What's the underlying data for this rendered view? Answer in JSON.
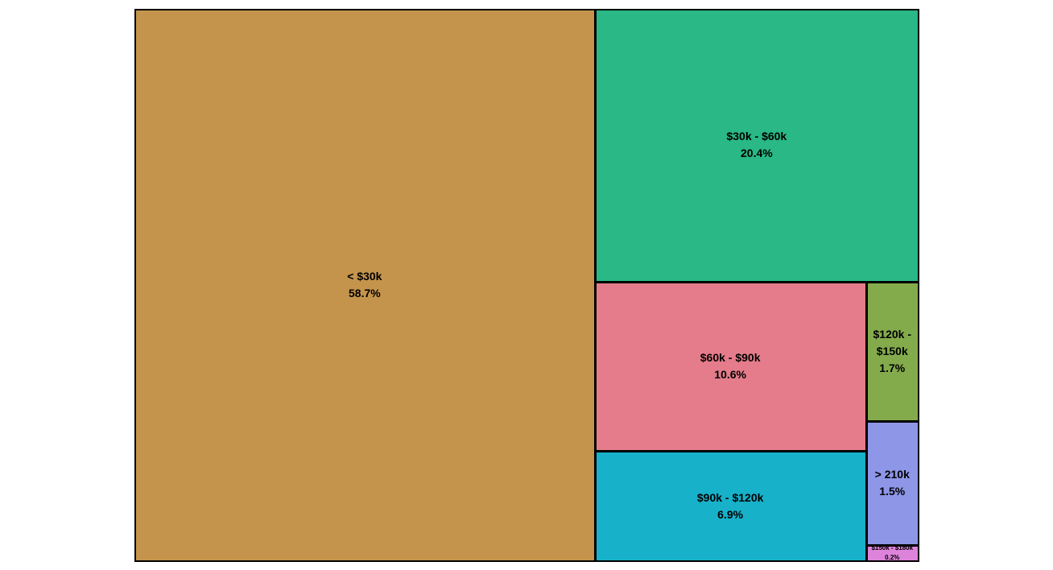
{
  "chart_data": {
    "type": "treemap",
    "title": "",
    "items": [
      {
        "label": "< $30k",
        "value": 58.7,
        "value_label": "58.7%",
        "color": "#C4944C"
      },
      {
        "label": "$30k - $60k",
        "value": 20.4,
        "value_label": "20.4%",
        "color": "#29B886"
      },
      {
        "label": "$60k - $90k",
        "value": 10.6,
        "value_label": "10.6%",
        "color": "#E57C8B"
      },
      {
        "label": "$90k - $120k",
        "value": 6.9,
        "value_label": "6.9%",
        "color": "#17B1C9"
      },
      {
        "label": "$120k - $150k",
        "value": 1.7,
        "value_label": "1.7%",
        "color": "#84AB4B"
      },
      {
        "label": "> 210k",
        "value": 1.5,
        "value_label": "1.5%",
        "color": "#8E96E8"
      },
      {
        "label": "$150k - $180k",
        "value": 0.2,
        "value_label": "0.2%",
        "color": "#DE83DB"
      }
    ]
  }
}
